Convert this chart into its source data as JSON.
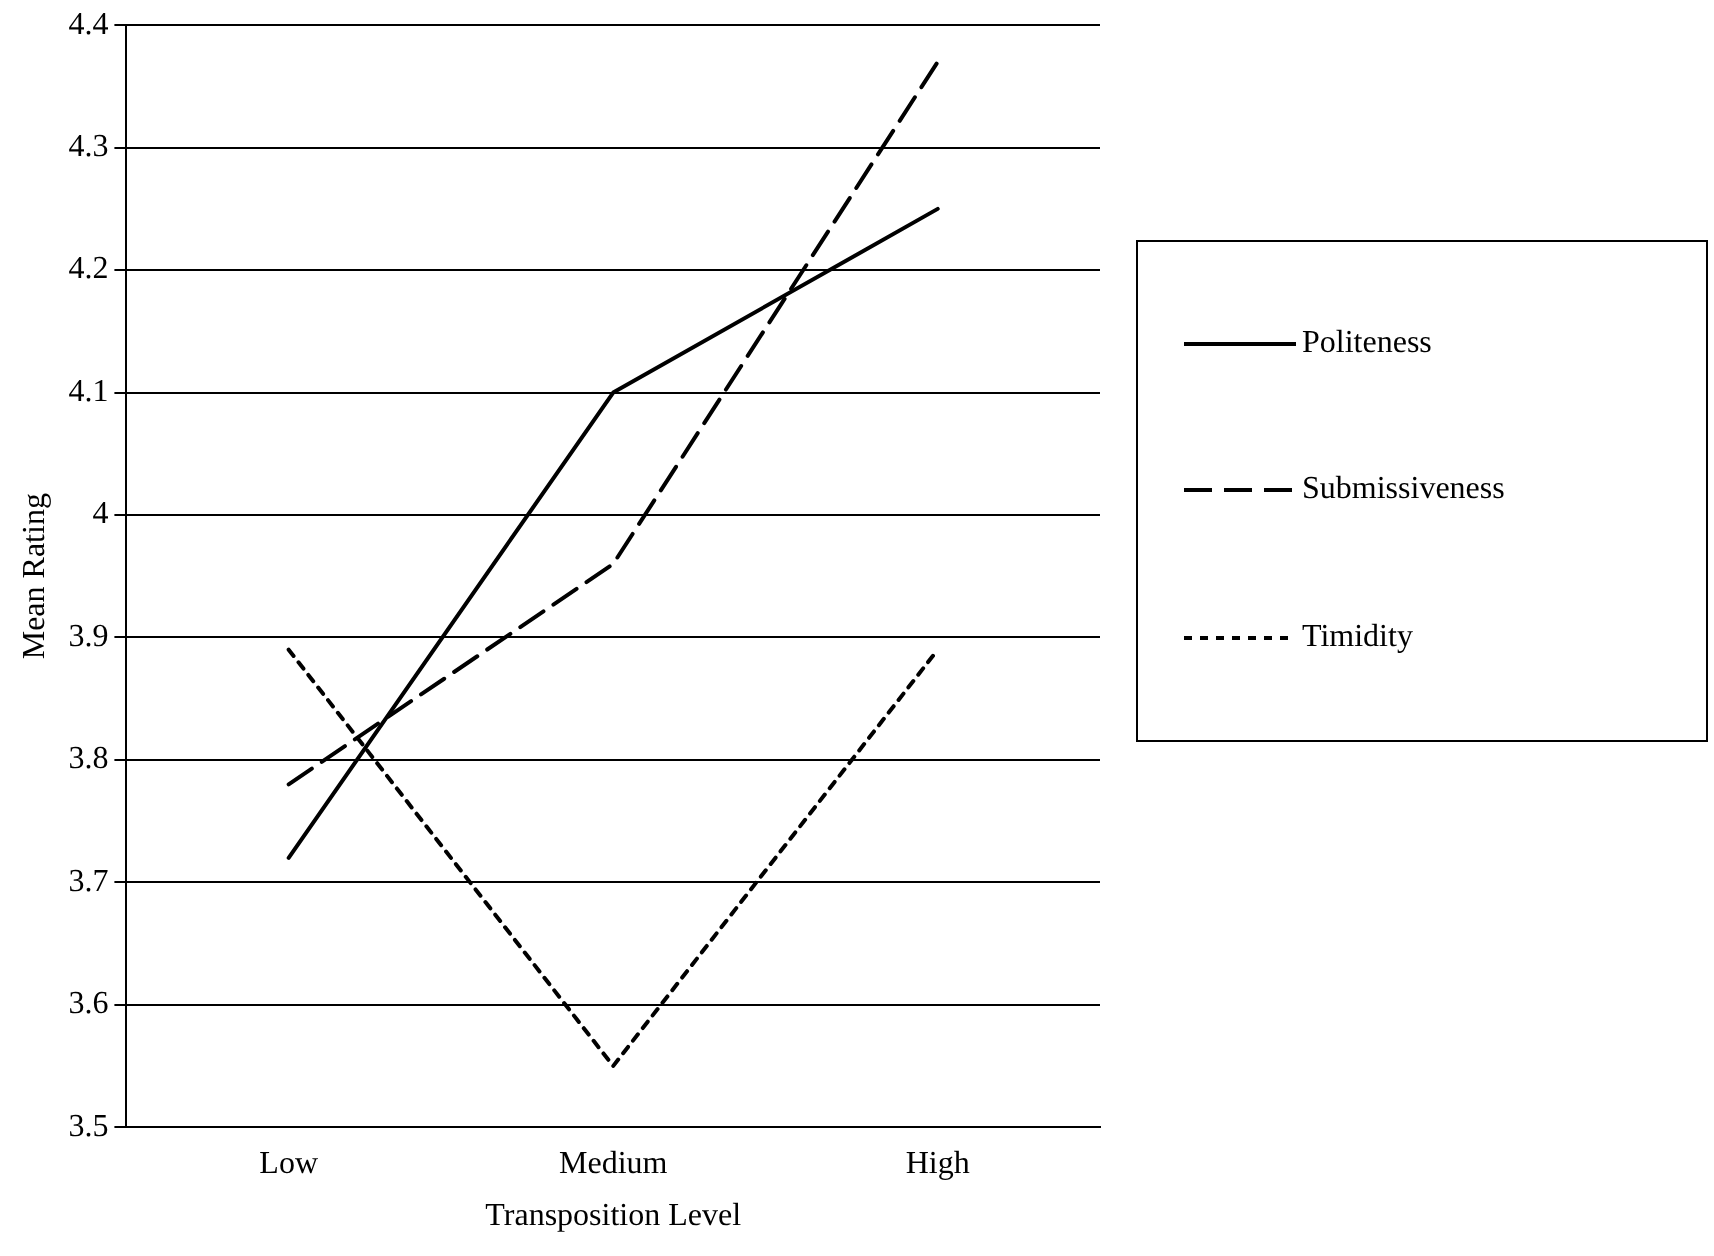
{
  "chart_data": {
    "type": "line",
    "xlabel": "Transposition Level",
    "ylabel": "Mean Rating",
    "categories": [
      "Low",
      "Medium",
      "High"
    ],
    "series": [
      {
        "name": "Politeness",
        "color": "#000000",
        "line_style": "solid",
        "values": [
          3.72,
          4.1,
          4.25
        ]
      },
      {
        "name": "Submissiveness",
        "color": "#000000",
        "line_style": "dashed",
        "values": [
          3.78,
          3.96,
          4.37
        ]
      },
      {
        "name": "Timidity",
        "color": "#000000",
        "line_style": "dotted",
        "values": [
          3.89,
          3.55,
          3.89
        ]
      }
    ],
    "ylim": [
      3.5,
      4.4
    ],
    "yticks": [
      3.5,
      3.6,
      3.7,
      3.8,
      3.9,
      4,
      4.1,
      4.2,
      4.3,
      4.4
    ],
    "grid": "y",
    "legend": "right",
    "marker": "none"
  }
}
